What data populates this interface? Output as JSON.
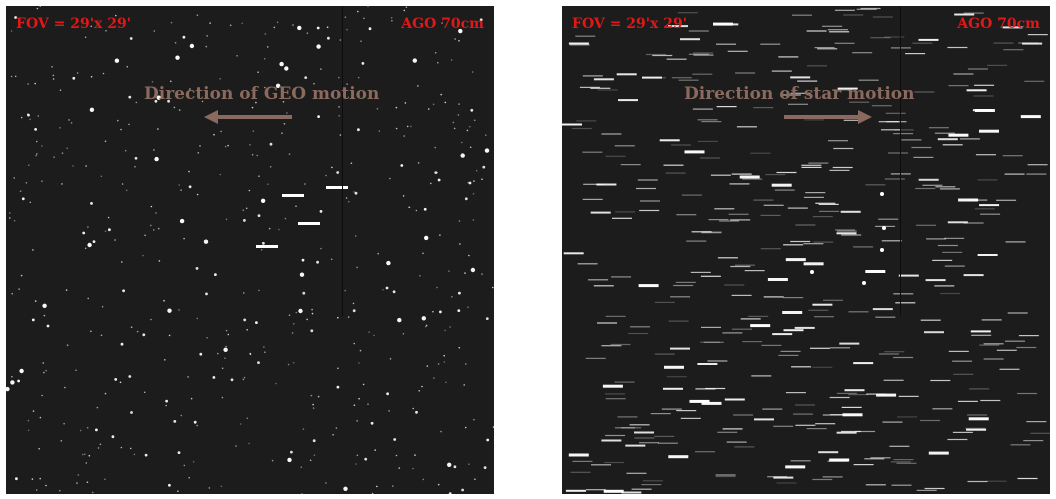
{
  "left_panel": {
    "fov_label": "FOV = 29'x 29'",
    "telescope_label": "AGO 70cm",
    "direction_label": "Direction of GEO motion",
    "arrow_direction": "left",
    "star_appearance": "points",
    "object_appearance": "streaks"
  },
  "right_panel": {
    "fov_label": "FOV = 29'x 29'",
    "telescope_label": "AGO 70cm",
    "direction_label": "Direction of star motion",
    "arrow_direction": "right",
    "star_appearance": "streaks",
    "object_appearance": "points"
  },
  "colors": {
    "background": "#1c1c1c",
    "label_red": "#e01818",
    "direction_brown": "#8a6a5e",
    "star_white": "#ffffff"
  }
}
